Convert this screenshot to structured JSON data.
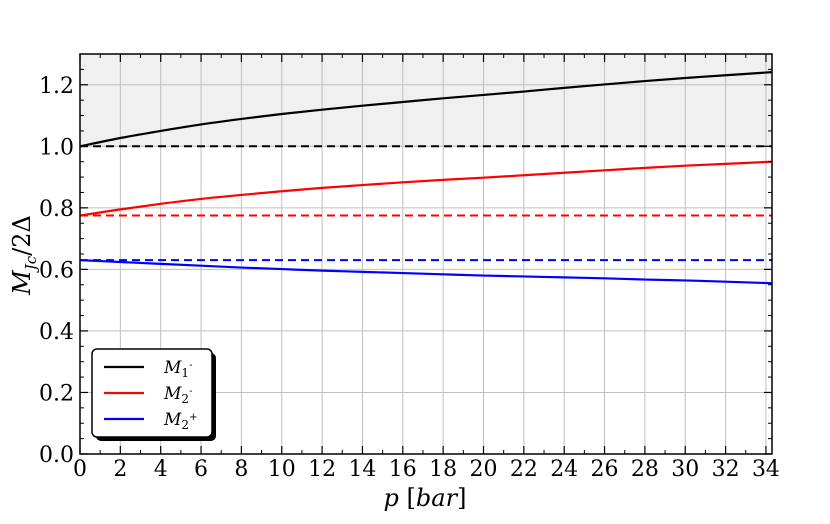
{
  "chart_data": {
    "type": "line",
    "xlabel": "p [bar]",
    "ylabel": "M_Jc/2Δ",
    "xlim": [
      0,
      34.3
    ],
    "ylim": [
      0.0,
      1.3
    ],
    "x_ticks": [
      "0",
      "2",
      "4",
      "6",
      "8",
      "10",
      "12",
      "14",
      "16",
      "18",
      "20",
      "22",
      "24",
      "26",
      "28",
      "30",
      "32",
      "34"
    ],
    "y_ticks": [
      "0.0",
      "0.2",
      "0.4",
      "0.6",
      "0.8",
      "1.0",
      "1.2"
    ],
    "grid": true,
    "shaded_region": {
      "y_from": 1.0,
      "y_to": 1.3,
      "color": "#f0f0f0"
    },
    "legend_position": "lower-left",
    "x": [
      0,
      2,
      4,
      6,
      8,
      10,
      12,
      14,
      16,
      18,
      20,
      22,
      24,
      26,
      28,
      30,
      32,
      34.3
    ],
    "series": [
      {
        "name": "M_1^-",
        "color": "#000000",
        "values": [
          1.0,
          1.027,
          1.05,
          1.071,
          1.089,
          1.105,
          1.119,
          1.132,
          1.144,
          1.156,
          1.167,
          1.178,
          1.19,
          1.201,
          1.212,
          1.222,
          1.231,
          1.241
        ]
      },
      {
        "name": "M_2^-",
        "color": "#ff0000",
        "values": [
          0.775,
          0.795,
          0.813,
          0.829,
          0.842,
          0.854,
          0.865,
          0.874,
          0.883,
          0.891,
          0.898,
          0.906,
          0.914,
          0.922,
          0.93,
          0.937,
          0.943,
          0.95
        ]
      },
      {
        "name": "M_2^+",
        "color": "#0000ff",
        "values": [
          0.63,
          0.624,
          0.618,
          0.612,
          0.606,
          0.601,
          0.596,
          0.592,
          0.588,
          0.584,
          0.58,
          0.577,
          0.574,
          0.571,
          0.567,
          0.564,
          0.56,
          0.555
        ]
      }
    ],
    "reference_lines": [
      {
        "y": 1.0,
        "color": "#000000",
        "style": "dashed"
      },
      {
        "y": 0.775,
        "color": "#ff0000",
        "style": "dashed"
      },
      {
        "y": 0.63,
        "color": "#0000ff",
        "style": "dashed"
      }
    ]
  }
}
